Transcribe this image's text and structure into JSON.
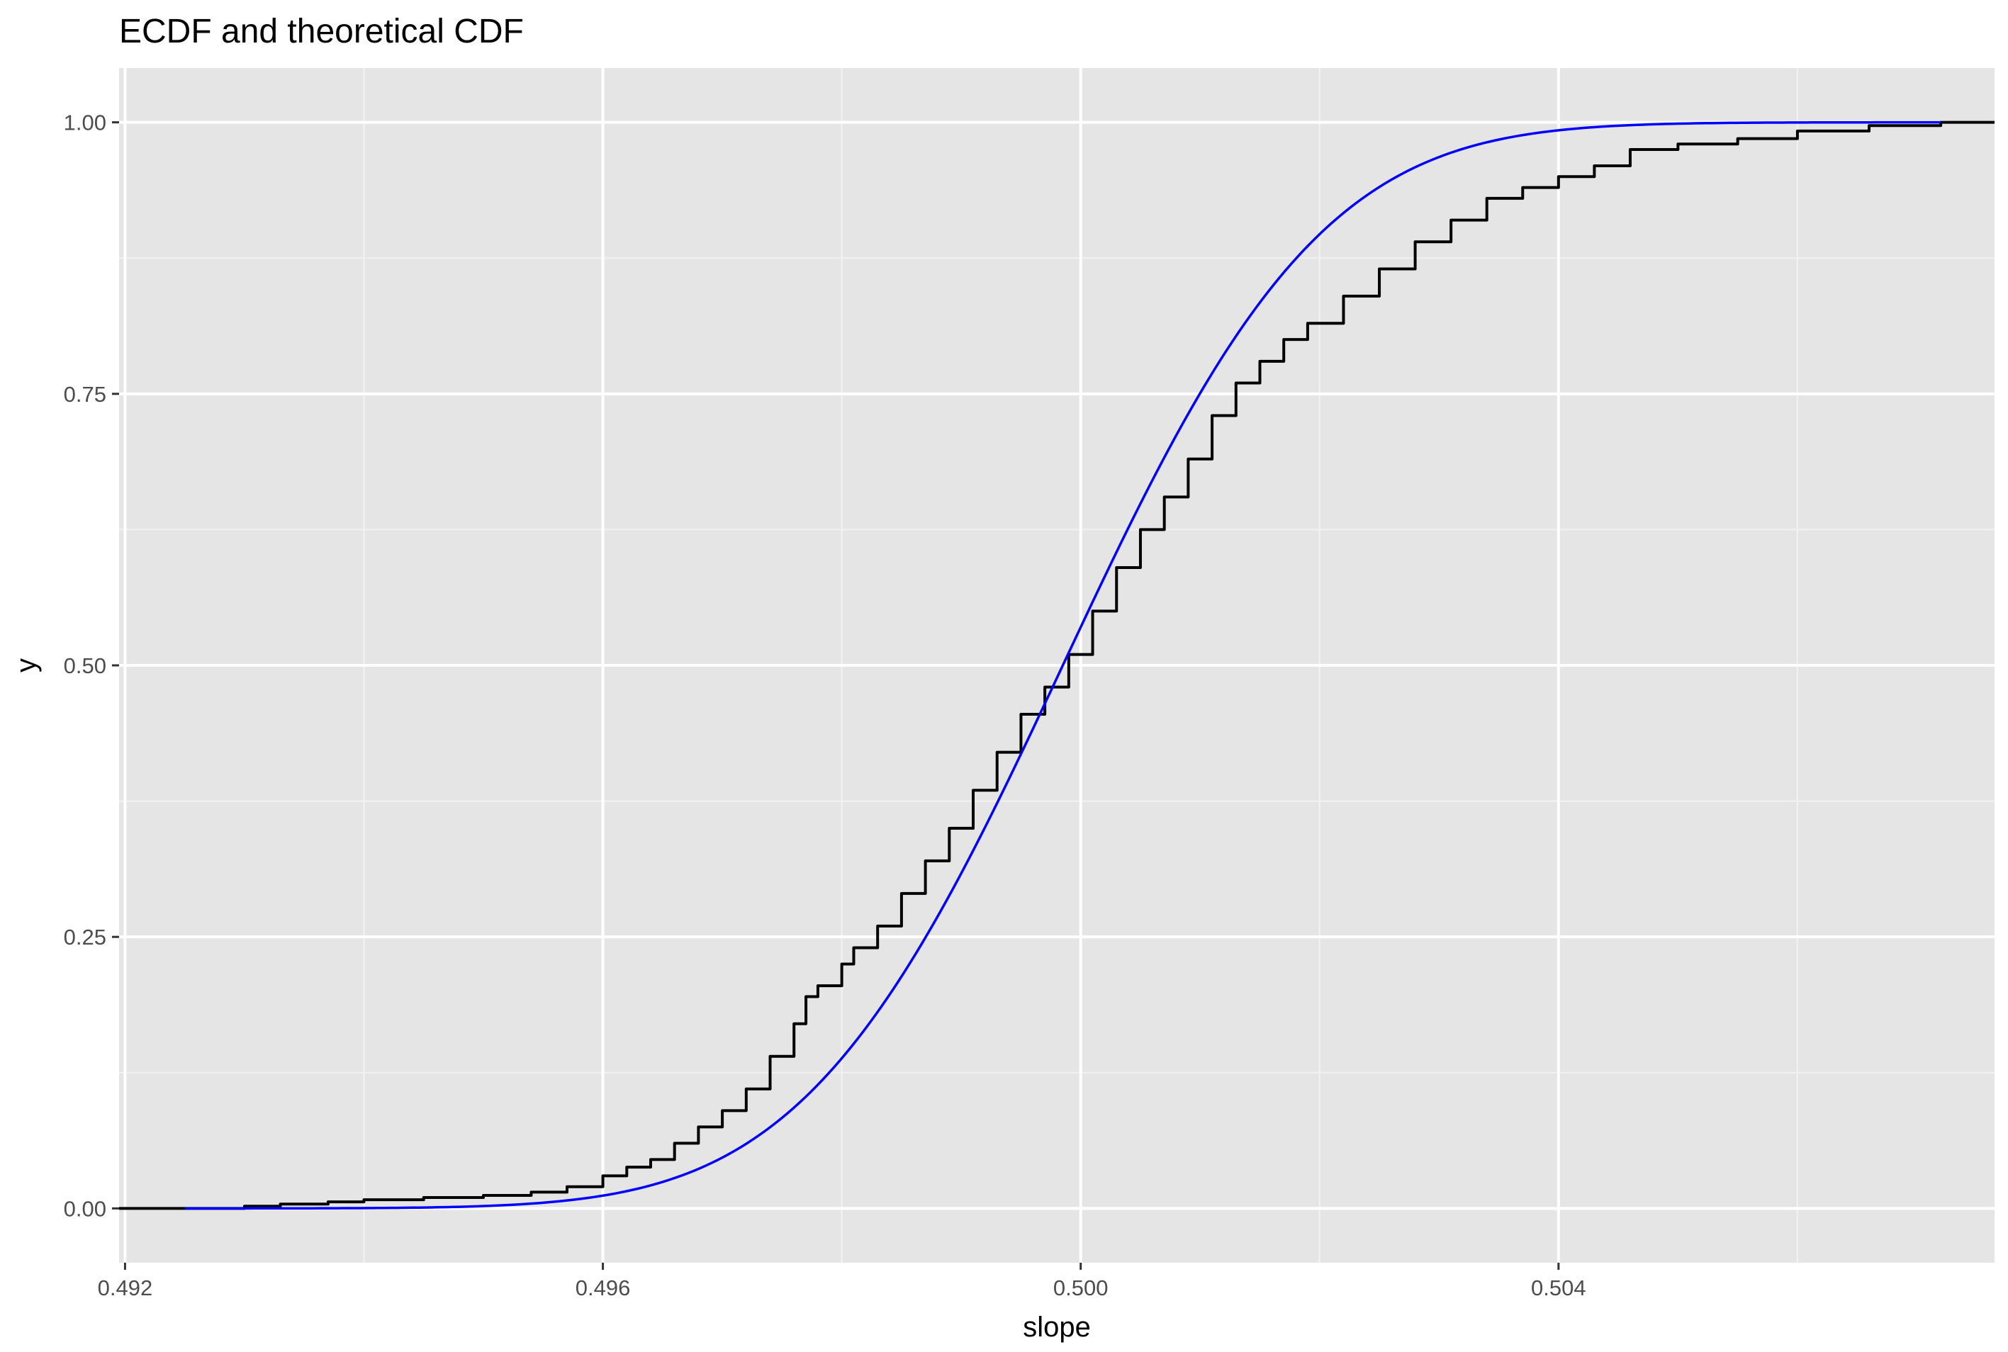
{
  "chart_data": {
    "type": "line",
    "title": "ECDF and theoretical CDF",
    "xlabel": "slope",
    "ylabel": "y",
    "xlim": [
      0.49195,
      0.50765
    ],
    "ylim": [
      -0.05,
      1.05
    ],
    "x_ticks": [
      0.492,
      0.496,
      0.5,
      0.504
    ],
    "x_tick_labels": [
      "0.492",
      "0.496",
      "0.500",
      "0.504"
    ],
    "y_ticks": [
      0,
      0.25,
      0.5,
      0.75,
      1
    ],
    "y_tick_labels": [
      "0.00",
      "0.25",
      "0.50",
      "0.75",
      "1.00"
    ],
    "grid": true,
    "background": "#e5e5e5",
    "series": [
      {
        "kind": "ecdf-step",
        "color": "#000000",
        "x": [
          0.4918,
          0.4925,
          0.493,
          0.4933,
          0.4937,
          0.494,
          0.4945,
          0.495,
          0.4954,
          0.4957,
          0.496,
          0.4962,
          0.4964,
          0.4966,
          0.4968,
          0.497,
          0.4972,
          0.4974,
          0.4976,
          0.4977,
          0.4978,
          0.498,
          0.4981,
          0.4983,
          0.4985,
          0.4987,
          0.4989,
          0.4991,
          0.4993,
          0.4995,
          0.4997,
          0.4999,
          0.5001,
          0.5003,
          0.5005,
          0.5007,
          0.5009,
          0.5011,
          0.5013,
          0.5015,
          0.5017,
          0.5019,
          0.5022,
          0.5025,
          0.5028,
          0.5031,
          0.5034,
          0.5037,
          0.504,
          0.5043,
          0.5046,
          0.505,
          0.5055,
          0.506,
          0.5066,
          0.5072,
          0.5078
        ],
        "y": [
          0.0,
          0.0,
          0.002,
          0.004,
          0.006,
          0.008,
          0.01,
          0.012,
          0.015,
          0.02,
          0.03,
          0.038,
          0.045,
          0.06,
          0.075,
          0.09,
          0.11,
          0.14,
          0.17,
          0.195,
          0.205,
          0.225,
          0.24,
          0.26,
          0.29,
          0.32,
          0.35,
          0.385,
          0.42,
          0.455,
          0.48,
          0.51,
          0.55,
          0.59,
          0.625,
          0.655,
          0.69,
          0.73,
          0.76,
          0.78,
          0.8,
          0.815,
          0.84,
          0.865,
          0.89,
          0.91,
          0.93,
          0.94,
          0.95,
          0.96,
          0.975,
          0.98,
          0.985,
          0.992,
          0.997,
          1.0,
          1.0
        ]
      },
      {
        "kind": "normal-cdf",
        "color": "#0000ff",
        "mean": 0.49985,
        "sd": 0.0017,
        "x_range": [
          0.4925,
          0.5072
        ]
      }
    ]
  }
}
